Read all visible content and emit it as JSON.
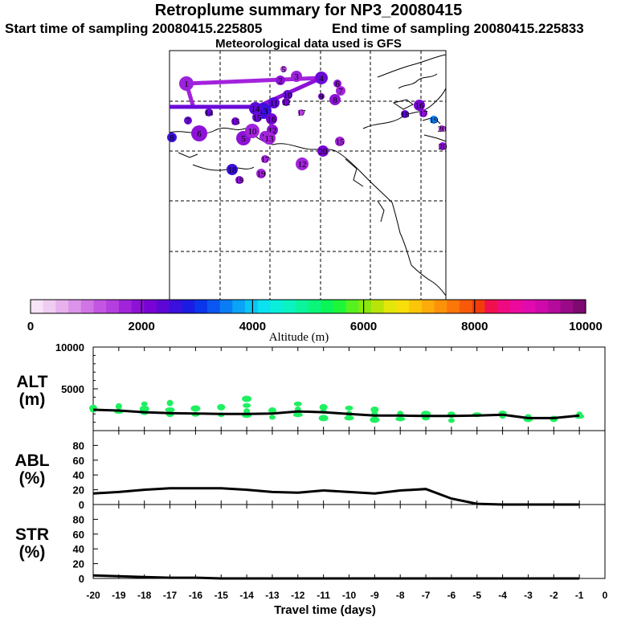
{
  "header": {
    "title": "Retroplume summary for NP3_20080415",
    "start": "Start time of sampling 20080415.225805",
    "end": "End time of sampling 20080415.225833",
    "met": "Meteorological data used is GFS"
  },
  "colorbar": {
    "tick_labels": [
      "0",
      "2000",
      "4000",
      "6000",
      "8000",
      "10000"
    ],
    "label": "Altitude (m)",
    "colors": [
      "#f7e4f7",
      "#efcdf1",
      "#e7b1ee",
      "#dc93ea",
      "#d175e6",
      "#c356e2",
      "#b43ede",
      "#a224da",
      "#8d12d6",
      "#7704d4",
      "#5c07d6",
      "#3b0fdc",
      "#1c1be3",
      "#0a35ea",
      "#0a56f0",
      "#0a7cf4",
      "#0aa3f6",
      "#0ac6f6",
      "#0ae2ef",
      "#0aefdc",
      "#0af3c0",
      "#0af49e",
      "#0af57a",
      "#0af658",
      "#1ef63a",
      "#56f11e",
      "#8ce80c",
      "#b9e40a",
      "#e4e60a",
      "#f8de0a",
      "#fbc60a",
      "#fcac0a",
      "#fd920a",
      "#fc760a",
      "#f85a0a",
      "#f23c0a",
      "#f01050",
      "#f00a80",
      "#ec0a9e",
      "#e00aae",
      "#ce0aac",
      "#b60a9c",
      "#9a0a86",
      "#7c0a70"
    ]
  },
  "map": {
    "plume_labels": [
      "1",
      "2",
      "3",
      "4",
      "5",
      "6",
      "7",
      "8",
      "9",
      "10",
      "11",
      "12",
      "13",
      "14",
      "15",
      "16",
      "17",
      "18",
      "19",
      "20"
    ]
  },
  "chart_data": [
    {
      "type": "line",
      "panel": "ALT",
      "ylabel": [
        "ALT",
        "(m)"
      ],
      "ylim": [
        0,
        10000
      ],
      "yticks": [
        5000,
        10000
      ],
      "x": [
        -20,
        -19,
        -18,
        -17,
        -16,
        -15,
        -14,
        -13,
        -12,
        -11,
        -10,
        -9,
        -8,
        -7,
        -6,
        -5,
        -4,
        -3,
        -2,
        -1
      ],
      "values": [
        2500,
        2400,
        2200,
        2100,
        2050,
        2000,
        2000,
        2050,
        2300,
        2200,
        2000,
        1800,
        1800,
        1750,
        1750,
        1800,
        1900,
        1500,
        1500,
        1800
      ],
      "scatter": [
        {
          "x": -20,
          "y": 2450
        },
        {
          "x": -20,
          "y": 2700
        },
        {
          "x": -19,
          "y": 2300
        },
        {
          "x": -19,
          "y": 2900
        },
        {
          "x": -18,
          "y": 2150
        },
        {
          "x": -18,
          "y": 2600
        },
        {
          "x": -18,
          "y": 3200
        },
        {
          "x": -17,
          "y": 2000
        },
        {
          "x": -17,
          "y": 2500
        },
        {
          "x": -17,
          "y": 3300
        },
        {
          "x": -16,
          "y": 1950
        },
        {
          "x": -16,
          "y": 2650
        },
        {
          "x": -15,
          "y": 1900
        },
        {
          "x": -15,
          "y": 2800
        },
        {
          "x": -14,
          "y": 1800
        },
        {
          "x": -14,
          "y": 2300
        },
        {
          "x": -14,
          "y": 3000
        },
        {
          "x": -14,
          "y": 3800
        },
        {
          "x": -13,
          "y": 1600
        },
        {
          "x": -13,
          "y": 2400
        },
        {
          "x": -12,
          "y": 1900
        },
        {
          "x": -12,
          "y": 2500
        },
        {
          "x": -12,
          "y": 3200
        },
        {
          "x": -11,
          "y": 1500
        },
        {
          "x": -11,
          "y": 2300
        },
        {
          "x": -11,
          "y": 2800
        },
        {
          "x": -10,
          "y": 1500
        },
        {
          "x": -10,
          "y": 2000
        },
        {
          "x": -10,
          "y": 2700
        },
        {
          "x": -9,
          "y": 1300
        },
        {
          "x": -9,
          "y": 2000
        },
        {
          "x": -9,
          "y": 2500
        },
        {
          "x": -8,
          "y": 1400
        },
        {
          "x": -8,
          "y": 2000
        },
        {
          "x": -7,
          "y": 1500
        },
        {
          "x": -7,
          "y": 2000
        },
        {
          "x": -6,
          "y": 1200
        },
        {
          "x": -6,
          "y": 1900
        },
        {
          "x": -5,
          "y": 1900
        },
        {
          "x": -4,
          "y": 1800
        },
        {
          "x": -4,
          "y": 2100
        },
        {
          "x": -3,
          "y": 1400
        },
        {
          "x": -3,
          "y": 1700
        },
        {
          "x": -2,
          "y": 1400
        },
        {
          "x": -1,
          "y": 1700
        },
        {
          "x": -1,
          "y": 1900
        }
      ]
    },
    {
      "type": "line",
      "panel": "ABL",
      "ylabel": [
        "ABL",
        "(%)"
      ],
      "ylim": [
        0,
        100
      ],
      "yticks": [
        "0",
        "20",
        "40",
        "60",
        "80"
      ],
      "x": [
        -20,
        -19,
        -18,
        -17,
        -16,
        -15,
        -14,
        -13,
        -12,
        -11,
        -10,
        -9,
        -8,
        -7,
        -6,
        -5,
        -4,
        -3,
        -2,
        -1
      ],
      "values": [
        15,
        17,
        20,
        22,
        22,
        22,
        20,
        17,
        16,
        19,
        17,
        15,
        19,
        21,
        8,
        1,
        0,
        0,
        0,
        0
      ]
    },
    {
      "type": "line",
      "panel": "STR",
      "ylabel": [
        "STR",
        "(%)"
      ],
      "ylim": [
        0,
        100
      ],
      "yticks": [
        "0",
        "20",
        "40",
        "60",
        "80"
      ],
      "x": [
        -20,
        -19,
        -18,
        -17,
        -16,
        -15,
        -14,
        -13,
        -12,
        -11,
        -10,
        -9,
        -8,
        -7,
        -6,
        -5,
        -4,
        -3,
        -2,
        -1
      ],
      "values": [
        4,
        3,
        2,
        1,
        1,
        0,
        0,
        0,
        0,
        0,
        0,
        0,
        0,
        0,
        0,
        0,
        0,
        0,
        0,
        0
      ],
      "xlabel": "Travel time (days)",
      "xticks": [
        "-20",
        "-19",
        "-18",
        "-17",
        "-16",
        "-15",
        "-14",
        "-13",
        "-12",
        "-11",
        "-10",
        "-9",
        "-8",
        "-7",
        "-6",
        "-5",
        "-4",
        "-3",
        "-2",
        "-1",
        "0"
      ]
    }
  ]
}
